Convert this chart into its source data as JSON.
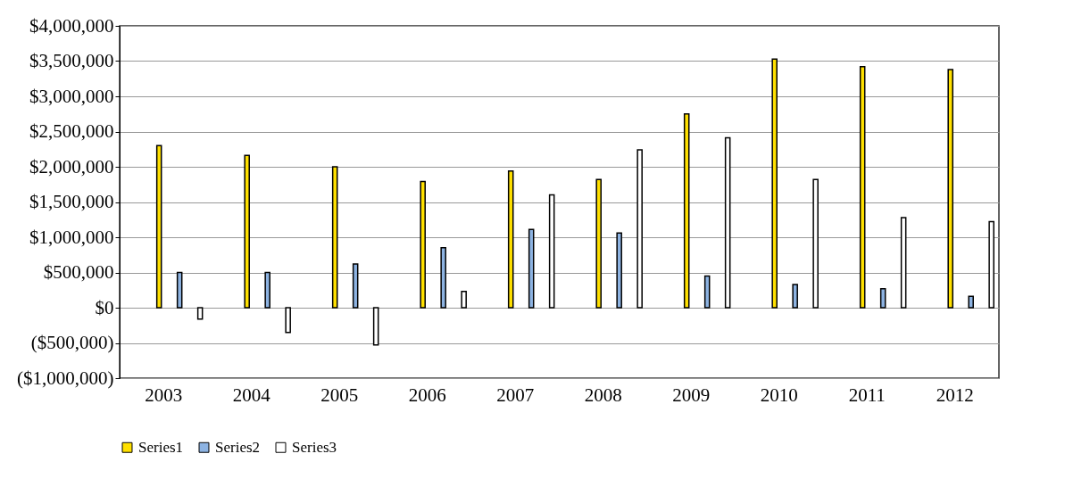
{
  "chart_data": {
    "type": "bar",
    "categories": [
      "2003",
      "2004",
      "2005",
      "2006",
      "2007",
      "2008",
      "2009",
      "2010",
      "2011",
      "2012"
    ],
    "series": [
      {
        "name": "Series1",
        "color": "#ffe000",
        "values": [
          2300000,
          2160000,
          2000000,
          1790000,
          1940000,
          1820000,
          2750000,
          3530000,
          3420000,
          3380000
        ]
      },
      {
        "name": "Series2",
        "color": "#8db3e2",
        "values": [
          500000,
          500000,
          620000,
          850000,
          1110000,
          1060000,
          450000,
          330000,
          270000,
          160000
        ]
      },
      {
        "name": "Series3",
        "color": "#ffffff",
        "values": [
          -160000,
          -350000,
          -530000,
          230000,
          1600000,
          2240000,
          2410000,
          1820000,
          1280000,
          1220000
        ]
      }
    ],
    "ylim": [
      -1000000,
      4000000
    ],
    "yticks": [
      {
        "value": -1000000,
        "label": "($1,000,000)"
      },
      {
        "value": -500000,
        "label": "($500,000)"
      },
      {
        "value": 0,
        "label": "$0"
      },
      {
        "value": 500000,
        "label": "$500,000"
      },
      {
        "value": 1000000,
        "label": "$1,000,000"
      },
      {
        "value": 1500000,
        "label": "$1,500,000"
      },
      {
        "value": 2000000,
        "label": "$2,000,000"
      },
      {
        "value": 2500000,
        "label": "$2,500,000"
      },
      {
        "value": 3000000,
        "label": "$3,000,000"
      },
      {
        "value": 3500000,
        "label": "$3,500,000"
      },
      {
        "value": 4000000,
        "label": "$4,000,000"
      }
    ],
    "grid": "y",
    "legend": "bottom"
  }
}
